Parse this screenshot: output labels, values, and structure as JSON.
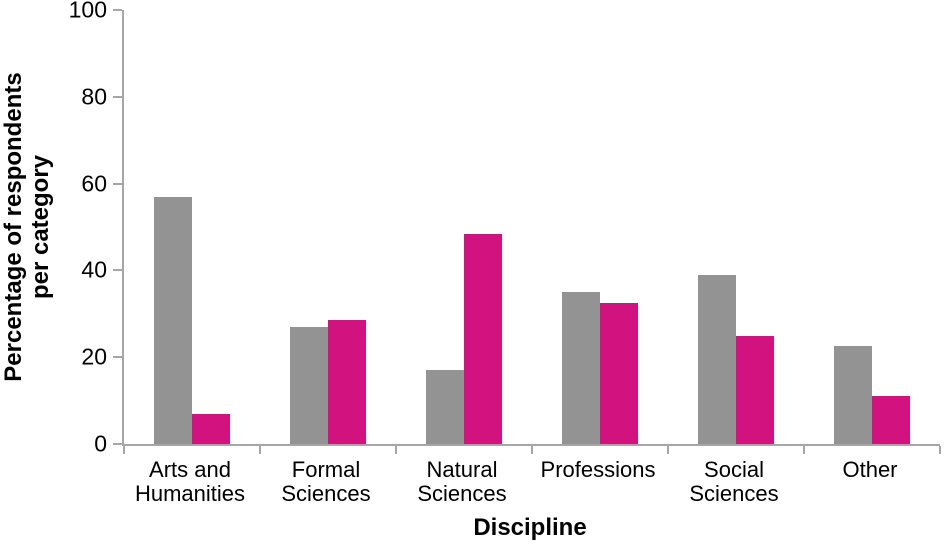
{
  "chart_data": {
    "type": "bar",
    "title": "",
    "xlabel": "Discipline",
    "ylabel": "Percentage of respondents per category",
    "ylabel_lines": [
      "Percentage of respondents",
      "per category"
    ],
    "categories": [
      "Arts and Humanities",
      "Formal Sciences",
      "Natural Sciences",
      "Professions",
      "Social Sciences",
      "Other"
    ],
    "category_label_lines": [
      [
        "Arts and",
        "Humanities"
      ],
      [
        "Formal",
        "Sciences"
      ],
      [
        "Natural",
        "Sciences"
      ],
      [
        "Professions"
      ],
      [
        "Social",
        "Sciences"
      ],
      [
        "Other"
      ]
    ],
    "series": [
      {
        "name": "gray-series",
        "color": "#939393",
        "values": [
          57,
          27,
          17,
          35,
          39,
          22.5
        ]
      },
      {
        "name": "magenta-series",
        "color": "#d2127e",
        "values": [
          7,
          28.5,
          48.5,
          32.5,
          25,
          11
        ]
      }
    ],
    "ylim": [
      0,
      100
    ],
    "yticks": [
      0,
      20,
      40,
      60,
      80,
      100
    ],
    "grid": false,
    "legend_position": "none",
    "axis_color": "#a6a6a6",
    "text_color": "#000000"
  }
}
